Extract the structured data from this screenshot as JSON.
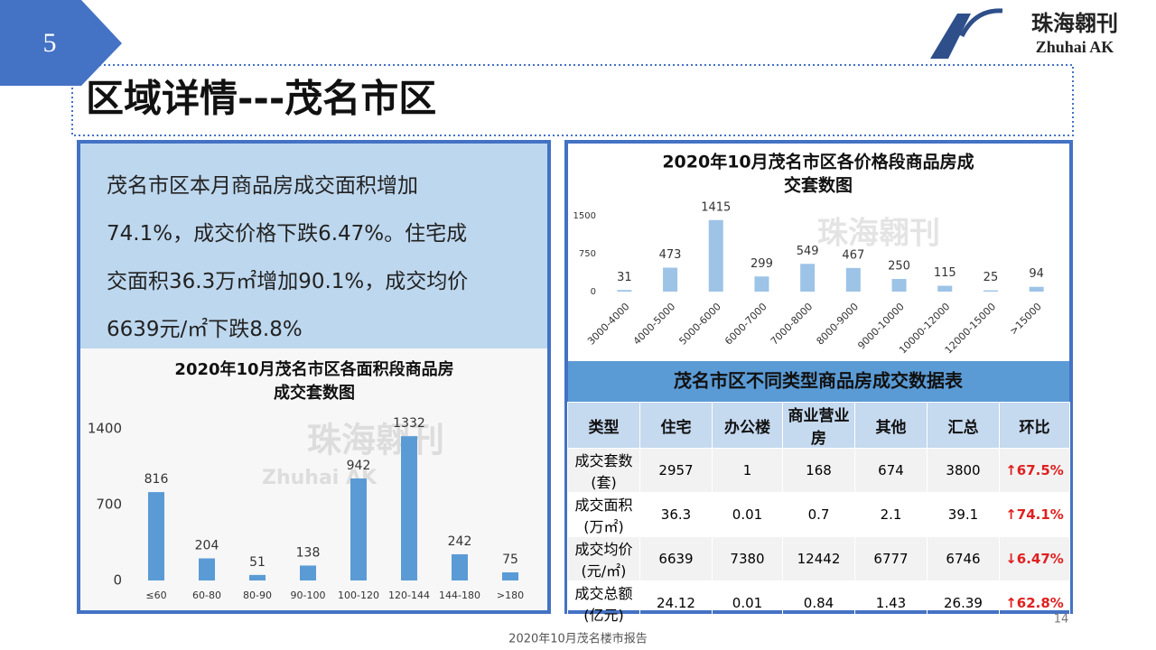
{
  "header": {
    "page_number": "5",
    "brand_cn": "珠海翱刊",
    "brand_en": "Zhuhai AK",
    "title": "区域详情---茂名市区"
  },
  "summary": {
    "lines": [
      "茂名市区本月商品房成交面积增加",
      "74.1%，成交价格下跌6.47%。住宅成",
      "交面积36.3万㎡增加90.1%，成交均价",
      "6639元/㎡下跌8.8%"
    ]
  },
  "chart_data": [
    {
      "type": "bar",
      "title_lines": [
        "2020年10月茂名市区各面积段商品房",
        "成交套数图"
      ],
      "categories": [
        "≤60",
        "60-80",
        "80-90",
        "90-100",
        "100-120",
        "120-144",
        "144-180",
        ">180"
      ],
      "values": [
        816,
        204,
        51,
        138,
        942,
        1332,
        242,
        75
      ],
      "ylim": [
        0,
        1400
      ],
      "yticks": [
        0,
        700,
        1400
      ],
      "color": "#5b9bd5"
    },
    {
      "type": "bar",
      "title_lines": [
        "2020年10月茂名市区各价格段商品房成",
        "交套数图"
      ],
      "categories": [
        "3000-4000",
        "4000-5000",
        "5000-6000",
        "6000-7000",
        "7000-8000",
        "8000-9000",
        "9000-10000",
        "10000-12000",
        "12000-15000",
        ">15000"
      ],
      "values": [
        31,
        473,
        1415,
        299,
        549,
        467,
        250,
        115,
        25,
        94
      ],
      "ylim": [
        0,
        1500
      ],
      "yticks": [
        0,
        750,
        1500
      ],
      "color": "#9dc3e6"
    }
  ],
  "table": {
    "title": "茂名市区不同类型商品房成交数据表",
    "header": [
      "类型",
      "住宅",
      "办公楼",
      "商业营业房",
      "其他",
      "汇总",
      "环比"
    ],
    "rows": [
      [
        "成交套数(套)",
        "2957",
        "1",
        "168",
        "674",
        "3800",
        "↑67.5%"
      ],
      [
        "成交面积(万㎡)",
        "36.3",
        "0.01",
        "0.7",
        "2.1",
        "39.1",
        "↑74.1%"
      ],
      [
        "成交均价(元/㎡)",
        "6639",
        "7380",
        "12442",
        "6777",
        "6746",
        "↓6.47%"
      ],
      [
        "成交总额(亿元)",
        "24.12",
        "0.01",
        "0.84",
        "1.43",
        "26.39",
        "↑62.8%"
      ]
    ]
  },
  "footer": {
    "report": "2020年10月茂名楼市报告",
    "page": "14"
  }
}
